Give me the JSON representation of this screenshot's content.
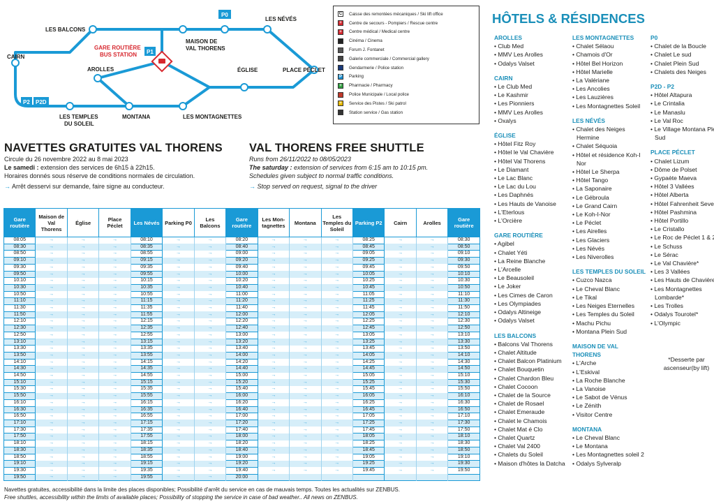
{
  "map": {
    "balcons": "LES BALCONS",
    "p0": "P0",
    "neves": "LES NÉVÉS",
    "maison": [
      "MAISON DE",
      "VAL THORENS"
    ],
    "gare": [
      "GARE ROUTIÈRE",
      "BUS STATION"
    ],
    "p1": "P1",
    "cairn": "CAIRN",
    "arolles": "AROLLES",
    "eglise": "ÉGLISE",
    "peclet": "PLACE PÉCLET",
    "p2": "P2",
    "p2d": "P2D",
    "temples": [
      "LES TEMPLES",
      "DU SOLEIL"
    ],
    "montana": "MONTANA",
    "montagnettes": "LES MONTAGNETTES"
  },
  "legend": {
    "items": [
      {
        "icon": "C",
        "color": "#ffffff",
        "text": "Caisse des remontées mécaniques / Ski lift office"
      },
      {
        "icon": "+",
        "color": "#d7282f",
        "text": "Centre de secours - Pompiers / Rescue centre"
      },
      {
        "icon": "+",
        "color": "#d7282f",
        "text": "Centre médical / Medical centre"
      },
      {
        "color": "#222222",
        "text": "Cinéma / Cinema"
      },
      {
        "color": "#555555",
        "text": "Forum J. Fontanet"
      },
      {
        "color": "#444444",
        "text": "Galerie commerciale / Commercial gallery"
      },
      {
        "color": "#1a3a7a",
        "text": "Gendarmerie / Police station"
      },
      {
        "icon": "P",
        "color": "#1a8fd0",
        "text": "Parking"
      },
      {
        "icon": "+",
        "color": "#2e9e3e",
        "text": "Pharmacie / Pharmacy"
      },
      {
        "color": "#c0392b",
        "text": "Police Municipale / Local police"
      },
      {
        "icon": "+",
        "color": "#e6b800",
        "text": "Service des Pistes / Ski patrol"
      },
      {
        "color": "#333333",
        "text": "Station service / Gas station"
      }
    ]
  },
  "fr": {
    "title": "NAVETTES GRATUITES VAL THORENS",
    "dates": "Circule du 26 novembre 2022 au 8 mai 2023",
    "sat_label": "Le samedi :",
    "sat_text": " extension des services de 6h15 à 22h15.",
    "cond": "Horaires donnés sous réserve de conditions normales de circulation.",
    "arrow": "→",
    "request": " Arrêt desservi sur demande, faire signe au conducteur."
  },
  "en": {
    "title": "VAL THORENS FREE SHUTTLE",
    "dates": "Runs from 26/11/2022 to 08/05/2023",
    "sat_label": "The saturday :",
    "sat_text": " extension of services from 6:15 am to 10:15 pm.",
    "cond": "Schedules given subject to normal traffic conditions.",
    "arrow": "→",
    "request": " Stop served on request, signal to the driver"
  },
  "table": {
    "header": [
      {
        "text": "Gare routière",
        "highlight": true
      },
      {
        "text": "Maison de Val Thorens"
      },
      {
        "text": "Église"
      },
      {
        "text": "Place Péclet"
      },
      {
        "text": "Les Névés",
        "highlight": true
      },
      {
        "text": "Parking P0"
      },
      {
        "text": "Les Balcons"
      },
      {
        "text": "Gare routière",
        "highlight": true
      },
      {
        "text": "Les Mon-tagnettes"
      },
      {
        "text": "Montana"
      },
      {
        "text": "Les Temples du Soleil"
      },
      {
        "text": "Parking P2",
        "highlight": true
      },
      {
        "text": "Cairn"
      },
      {
        "text": "Arolles"
      },
      {
        "text": "Gare routière",
        "highlight": true
      }
    ],
    "rows": [
      [
        "08:05",
        "→",
        "→",
        "→",
        "08:10",
        "→",
        "→",
        "08:20",
        "→",
        "→",
        "→",
        "08:25",
        "→",
        "→",
        "08:30"
      ],
      [
        "08:30",
        "→",
        "→",
        "→",
        "08:35",
        "→",
        "→",
        "08:40",
        "→",
        "→",
        "→",
        "08:45",
        "→",
        "→",
        "08:50"
      ],
      [
        "08:50",
        "→",
        "→",
        "→",
        "08:55",
        "→",
        "→",
        "09:00",
        "→",
        "→",
        "→",
        "09:05",
        "→",
        "→",
        "09:10"
      ],
      [
        "09:10",
        "→",
        "→",
        "→",
        "09:15",
        "→",
        "→",
        "09:20",
        "→",
        "→",
        "→",
        "09:25",
        "→",
        "→",
        "09:30"
      ],
      [
        "09:30",
        "→",
        "→",
        "→",
        "09:35",
        "→",
        "→",
        "09:40",
        "→",
        "→",
        "→",
        "09:45",
        "→",
        "→",
        "09:50"
      ],
      [
        "09:50",
        "→",
        "→",
        "→",
        "09:55",
        "→",
        "→",
        "10:00",
        "→",
        "→",
        "→",
        "10:05",
        "→",
        "→",
        "10:10"
      ],
      [
        "10:10",
        "→",
        "→",
        "→",
        "10:15",
        "→",
        "→",
        "10:20",
        "→",
        "→",
        "→",
        "10:25",
        "→",
        "→",
        "10:30"
      ],
      [
        "10:30",
        "→",
        "→",
        "→",
        "10:35",
        "→",
        "→",
        "10:40",
        "→",
        "→",
        "→",
        "10:45",
        "→",
        "→",
        "10:50"
      ],
      [
        "10:50",
        "→",
        "→",
        "→",
        "10:55",
        "→",
        "→",
        "11:00",
        "→",
        "→",
        "→",
        "11:05",
        "→",
        "→",
        "11:10"
      ],
      [
        "11:10",
        "→",
        "→",
        "→",
        "11:15",
        "→",
        "→",
        "11:20",
        "→",
        "→",
        "→",
        "11:25",
        "→",
        "→",
        "11:30"
      ],
      [
        "11:30",
        "→",
        "→",
        "→",
        "11:35",
        "→",
        "→",
        "11:40",
        "→",
        "→",
        "→",
        "11:45",
        "→",
        "→",
        "11:50"
      ],
      [
        "11:50",
        "→",
        "→",
        "→",
        "11:55",
        "→",
        "→",
        "12:00",
        "→",
        "→",
        "→",
        "12:05",
        "→",
        "→",
        "12:10"
      ],
      [
        "12:10",
        "→",
        "→",
        "→",
        "12:15",
        "→",
        "→",
        "12:20",
        "→",
        "→",
        "→",
        "12:25",
        "→",
        "→",
        "12:30"
      ],
      [
        "12:30",
        "→",
        "→",
        "→",
        "12:35",
        "→",
        "→",
        "12:40",
        "→",
        "→",
        "→",
        "12:45",
        "→",
        "→",
        "12:50"
      ],
      [
        "12:50",
        "→",
        "→",
        "→",
        "12:55",
        "→",
        "→",
        "13:00",
        "→",
        "→",
        "→",
        "13:05",
        "→",
        "→",
        "13:10"
      ],
      [
        "13:10",
        "→",
        "→",
        "→",
        "13:15",
        "→",
        "→",
        "13:20",
        "→",
        "→",
        "→",
        "13:25",
        "→",
        "→",
        "13:30"
      ],
      [
        "13:30",
        "→",
        "→",
        "→",
        "13:35",
        "→",
        "→",
        "13:40",
        "→",
        "→",
        "→",
        "13:45",
        "→",
        "→",
        "13:50"
      ],
      [
        "13:50",
        "→",
        "→",
        "→",
        "13:55",
        "→",
        "→",
        "14:00",
        "→",
        "→",
        "→",
        "14:05",
        "→",
        "→",
        "14:10"
      ],
      [
        "14:10",
        "→",
        "→",
        "→",
        "14:15",
        "→",
        "→",
        "14:20",
        "→",
        "→",
        "→",
        "14:25",
        "→",
        "→",
        "14:30"
      ],
      [
        "14:30",
        "→",
        "→",
        "→",
        "14:35",
        "→",
        "→",
        "14:40",
        "→",
        "→",
        "→",
        "14:45",
        "→",
        "→",
        "14:50"
      ],
      [
        "14:50",
        "→",
        "→",
        "→",
        "14:55",
        "→",
        "→",
        "15:00",
        "→",
        "→",
        "→",
        "15:05",
        "→",
        "→",
        "15:10"
      ],
      [
        "15:10",
        "→",
        "→",
        "→",
        "15:15",
        "→",
        "→",
        "15:20",
        "→",
        "→",
        "→",
        "15:25",
        "→",
        "→",
        "15:30"
      ],
      [
        "15:30",
        "→",
        "→",
        "→",
        "15:35",
        "→",
        "→",
        "15:40",
        "→",
        "→",
        "→",
        "15:45",
        "→",
        "→",
        "15:50"
      ],
      [
        "15:50",
        "→",
        "→",
        "→",
        "15:55",
        "→",
        "→",
        "16:00",
        "→",
        "→",
        "→",
        "16:05",
        "→",
        "→",
        "16:10"
      ],
      [
        "16:10",
        "→",
        "→",
        "→",
        "16:15",
        "→",
        "→",
        "16:20",
        "→",
        "→",
        "→",
        "16:25",
        "→",
        "→",
        "16:30"
      ],
      [
        "16:30",
        "→",
        "→",
        "→",
        "16:35",
        "→",
        "→",
        "16:40",
        "→",
        "→",
        "→",
        "16:45",
        "→",
        "→",
        "16:50"
      ],
      [
        "16:50",
        "→",
        "→",
        "→",
        "16:55",
        "→",
        "→",
        "17:00",
        "→",
        "→",
        "→",
        "17:05",
        "→",
        "→",
        "17:10"
      ],
      [
        "17:10",
        "→",
        "→",
        "→",
        "17:15",
        "→",
        "→",
        "17:20",
        "→",
        "→",
        "→",
        "17:25",
        "→",
        "→",
        "17:30"
      ],
      [
        "17:30",
        "→",
        "→",
        "→",
        "17:35",
        "→",
        "→",
        "17:40",
        "→",
        "→",
        "→",
        "17:45",
        "→",
        "→",
        "17:50"
      ],
      [
        "17:50",
        "→",
        "→",
        "→",
        "17:55",
        "→",
        "→",
        "18:00",
        "→",
        "→",
        "→",
        "18:05",
        "→",
        "→",
        "18:10"
      ],
      [
        "18:10",
        "→",
        "→",
        "→",
        "18:15",
        "→",
        "→",
        "18:20",
        "→",
        "→",
        "→",
        "18:25",
        "→",
        "→",
        "18:30"
      ],
      [
        "18:30",
        "→",
        "→",
        "→",
        "18:35",
        "→",
        "→",
        "18:40",
        "→",
        "→",
        "→",
        "18:45",
        "→",
        "→",
        "18:50"
      ],
      [
        "18:50",
        "→",
        "→",
        "→",
        "18:55",
        "→",
        "→",
        "19:00",
        "→",
        "→",
        "→",
        "19:05",
        "→",
        "→",
        "19:10"
      ],
      [
        "19:10",
        "→",
        "→",
        "→",
        "19:15",
        "→",
        "→",
        "19:20",
        "→",
        "→",
        "→",
        "19:25",
        "→",
        "→",
        "19:30"
      ],
      [
        "19:30",
        "→",
        "→",
        "→",
        "19:35",
        "→",
        "→",
        "19:40",
        "→",
        "→",
        "→",
        "19:45",
        "→",
        "→",
        "19:50"
      ],
      [
        "19:50",
        "→",
        "→",
        "→",
        "19:55",
        "→",
        "→",
        "20:00",
        null,
        null,
        null,
        null,
        null,
        null,
        null
      ]
    ]
  },
  "footer": [
    "Navettes gratuites, accessibilité dans la limite des places disponibles; Possibilité d'arrêt du service en cas de mauvais temps. Toutes les actualités sur ZENBUS.",
    "Free shuttles, accessibility within the limits of available places; Possibility of stopping the service in case of bad weather.. All news on ZENBUS."
  ],
  "hotels": {
    "title": "HÔTELS & RÉSIDENCES",
    "note": "*Desserte par ascenseur(by lift)",
    "columns": [
      [
        {
          "title": "AROLLES",
          "items": [
            "Club Med",
            "MMV Les Arolles",
            "Odalys Valset"
          ]
        },
        {
          "title": "CAIRN",
          "items": [
            "Le Club Med",
            "Le Kashmir",
            "Les Pionniers",
            "MMV Les Arolles",
            "Oxalys"
          ]
        },
        {
          "title": "ÉGLISE",
          "items": [
            "Hôtel Fitz Roy",
            "Hôtel le Val Chavière",
            "Hôtel Val Thorens",
            "Le Diamant",
            "Le Lac Blanc",
            "Le Lac du Lou",
            "Les Daphnés",
            "Les Hauts de Vanoise",
            "L'Eterlous",
            "L'Orcière"
          ]
        },
        {
          "title": "GARE ROUTIÈRE",
          "items": [
            "Agibel",
            "Chalet Yéti",
            "La Reine Blanche",
            "L'Arcelle",
            "Le Beausoleil",
            "Le Joker",
            "Les Cimes de Caron",
            "Les Olympiades",
            "Odalys Altineige",
            "Odalys Valset"
          ]
        },
        {
          "title": "LES BALCONS",
          "items": [
            "Balcons Val Thorens",
            "Chalet Altitude",
            "Chalet Balcon Platinium",
            "Chalet Bouquetin",
            "Chalet Chardon Bleu",
            "Chalet Cocoon",
            "Chalet de la Source",
            "Chalet de Rosael",
            "Chalet Emeraude",
            "Chalet le Chamois",
            "Chalet Mat é Clo",
            "Chalet Quartz",
            "Chalet Val 2400",
            "Chalets du Soleil",
            "Maison d'hôtes la Datcha"
          ]
        }
      ],
      [
        {
          "title": "LES MONTAGNETTES",
          "items": [
            "Chalet Sélaou",
            "Chamois d'Or",
            "Hôtel Bel Horizon",
            "Hôtel Marielle",
            "La Valériane",
            "Les Ancolies",
            "Les Lauzières",
            "Les Montagnettes Soleil"
          ]
        },
        {
          "title": "LES NÉVÉS",
          "items": [
            "Chalet des Neiges Hermine",
            "Chalet Séquoia",
            "Hôtel et résidence Koh-I Nor",
            "Hôtel Le Sherpa",
            "Hôtel Tango",
            "La Saponaire",
            "Le Gébroula",
            "Le Grand Cairn",
            "Le Koh-I-Nor",
            "Le Péclet",
            "Les Airelles",
            "Les Glaciers",
            "Les Névés",
            "Les Niverolles"
          ]
        },
        {
          "title": "LES TEMPLES DU SOLEIL",
          "items": [
            "Cuzco Nazca",
            "Le Cheval Blanc",
            "Le Tikal",
            "Les Neiges Eternelles",
            "Les Temples du Soleil",
            "Machu Pichu",
            "Montana Plein Sud"
          ]
        },
        {
          "title": "MAISON DE VAL THORENS",
          "items": [
            "L'Arche",
            "L'Eskival",
            "La Roche Blanche",
            "La Vanoise",
            "Le Sabot de Vénus",
            "Le Zénith",
            "Visitor Centre"
          ]
        },
        {
          "title": "MONTANA",
          "items": [
            "Le Cheval Blanc",
            "Le Montana",
            "Les Montagnettes soleil 2",
            "Odalys Sylveralp"
          ]
        }
      ],
      [
        {
          "title": "P0",
          "items": [
            "Chalet de la Boucle",
            "Chalet Le sud",
            "Chalet Plein Sud",
            "Chalets des Neiges"
          ]
        },
        {
          "title": "P2D - P2",
          "items": [
            "Hôtel Altapura",
            "Le Crintalia",
            "Le Manaslu",
            "Le Val Roc",
            "Le Village Montana Plein Sud"
          ]
        },
        {
          "title": "PLACE PÉCLET",
          "items": [
            "Chalet Lizum",
            "Dôme de Polset",
            "Gypaète Maeva",
            "Hôtel 3 Vallées",
            "Hôtel Alberta",
            "Hôtel Fahrenheit Seven*",
            "Hôtel Pashmina",
            "Hôtel Portillo",
            "Le Cristallo",
            "Le Roc de Péclet 1 & 2",
            "Le Schuss",
            "Le Sérac",
            "Le Val Chavière*",
            "Les 3 Vallées",
            "Les Hauts de Chavière",
            "Les Montagnettes Lombarde*",
            "Les Trolles",
            "Odalys Tourotel*",
            "L'Olympic"
          ]
        }
      ]
    ]
  }
}
